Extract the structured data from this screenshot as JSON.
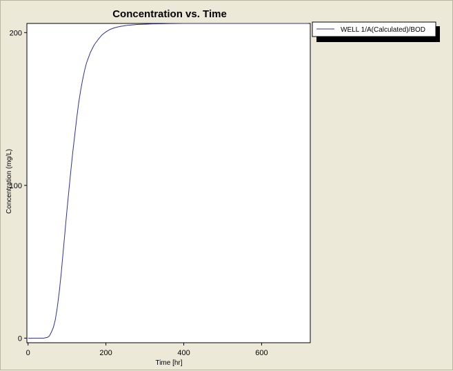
{
  "chart_data": {
    "type": "line",
    "title": "Concentration vs. Time",
    "xlabel": "Time  [hr]",
    "ylabel": "Concentration (mg/L)",
    "xlim": [
      -3,
      725
    ],
    "ylim": [
      -3,
      206
    ],
    "xticks": [
      0,
      200,
      400,
      600
    ],
    "yticks": [
      0,
      100,
      200
    ],
    "grid": false,
    "legend_position": "top-right, outside plot",
    "series": [
      {
        "name": "WELL 1/A(Calculated)/BOD",
        "color": "#2f2f9a",
        "x": [
          0,
          20,
          40,
          50,
          55,
          60,
          65,
          70,
          75,
          80,
          85,
          90,
          95,
          100,
          105,
          110,
          115,
          120,
          125,
          130,
          135,
          140,
          145,
          150,
          160,
          170,
          180,
          190,
          200,
          210,
          220,
          230,
          240,
          250,
          260,
          270,
          280,
          300,
          320,
          340,
          360,
          400,
          450,
          500,
          550,
          600,
          650,
          720
        ],
        "y": [
          0,
          0,
          0,
          0.5,
          1.5,
          4,
          7,
          12,
          20,
          30,
          42,
          56,
          70,
          84,
          97,
          110,
          122,
          133,
          144,
          154,
          162,
          169,
          175,
          180,
          187,
          192,
          195.5,
          198.5,
          200.5,
          202,
          203,
          203.7,
          204.2,
          204.6,
          204.9,
          205.1,
          205.3,
          205.5,
          205.7,
          205.8,
          205.9,
          206,
          206,
          206,
          206,
          206,
          206,
          206
        ]
      }
    ]
  }
}
